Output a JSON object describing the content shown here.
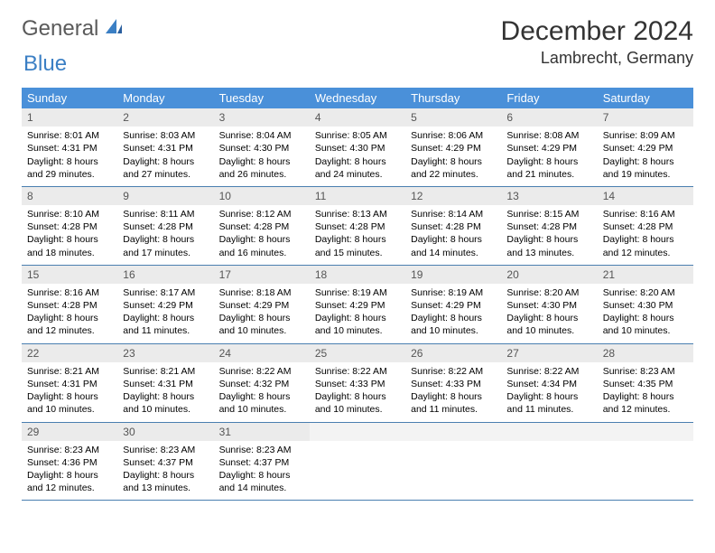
{
  "logo": {
    "part1": "General",
    "part2": "Blue"
  },
  "title": "December 2024",
  "location": "Lambrecht, Germany",
  "colors": {
    "header_bg": "#4a90d9",
    "header_text": "#ffffff",
    "daynum_bg": "#ebebeb",
    "row_border": "#4a7fb0",
    "logo_gray": "#5a5a5a",
    "logo_blue": "#3b7fc4"
  },
  "weekdays": [
    "Sunday",
    "Monday",
    "Tuesday",
    "Wednesday",
    "Thursday",
    "Friday",
    "Saturday"
  ],
  "weeks": [
    [
      {
        "n": "1",
        "sr": "8:01 AM",
        "ss": "4:31 PM",
        "dl": "8 hours and 29 minutes."
      },
      {
        "n": "2",
        "sr": "8:03 AM",
        "ss": "4:31 PM",
        "dl": "8 hours and 27 minutes."
      },
      {
        "n": "3",
        "sr": "8:04 AM",
        "ss": "4:30 PM",
        "dl": "8 hours and 26 minutes."
      },
      {
        "n": "4",
        "sr": "8:05 AM",
        "ss": "4:30 PM",
        "dl": "8 hours and 24 minutes."
      },
      {
        "n": "5",
        "sr": "8:06 AM",
        "ss": "4:29 PM",
        "dl": "8 hours and 22 minutes."
      },
      {
        "n": "6",
        "sr": "8:08 AM",
        "ss": "4:29 PM",
        "dl": "8 hours and 21 minutes."
      },
      {
        "n": "7",
        "sr": "8:09 AM",
        "ss": "4:29 PM",
        "dl": "8 hours and 19 minutes."
      }
    ],
    [
      {
        "n": "8",
        "sr": "8:10 AM",
        "ss": "4:28 PM",
        "dl": "8 hours and 18 minutes."
      },
      {
        "n": "9",
        "sr": "8:11 AM",
        "ss": "4:28 PM",
        "dl": "8 hours and 17 minutes."
      },
      {
        "n": "10",
        "sr": "8:12 AM",
        "ss": "4:28 PM",
        "dl": "8 hours and 16 minutes."
      },
      {
        "n": "11",
        "sr": "8:13 AM",
        "ss": "4:28 PM",
        "dl": "8 hours and 15 minutes."
      },
      {
        "n": "12",
        "sr": "8:14 AM",
        "ss": "4:28 PM",
        "dl": "8 hours and 14 minutes."
      },
      {
        "n": "13",
        "sr": "8:15 AM",
        "ss": "4:28 PM",
        "dl": "8 hours and 13 minutes."
      },
      {
        "n": "14",
        "sr": "8:16 AM",
        "ss": "4:28 PM",
        "dl": "8 hours and 12 minutes."
      }
    ],
    [
      {
        "n": "15",
        "sr": "8:16 AM",
        "ss": "4:28 PM",
        "dl": "8 hours and 12 minutes."
      },
      {
        "n": "16",
        "sr": "8:17 AM",
        "ss": "4:29 PM",
        "dl": "8 hours and 11 minutes."
      },
      {
        "n": "17",
        "sr": "8:18 AM",
        "ss": "4:29 PM",
        "dl": "8 hours and 10 minutes."
      },
      {
        "n": "18",
        "sr": "8:19 AM",
        "ss": "4:29 PM",
        "dl": "8 hours and 10 minutes."
      },
      {
        "n": "19",
        "sr": "8:19 AM",
        "ss": "4:29 PM",
        "dl": "8 hours and 10 minutes."
      },
      {
        "n": "20",
        "sr": "8:20 AM",
        "ss": "4:30 PM",
        "dl": "8 hours and 10 minutes."
      },
      {
        "n": "21",
        "sr": "8:20 AM",
        "ss": "4:30 PM",
        "dl": "8 hours and 10 minutes."
      }
    ],
    [
      {
        "n": "22",
        "sr": "8:21 AM",
        "ss": "4:31 PM",
        "dl": "8 hours and 10 minutes."
      },
      {
        "n": "23",
        "sr": "8:21 AM",
        "ss": "4:31 PM",
        "dl": "8 hours and 10 minutes."
      },
      {
        "n": "24",
        "sr": "8:22 AM",
        "ss": "4:32 PM",
        "dl": "8 hours and 10 minutes."
      },
      {
        "n": "25",
        "sr": "8:22 AM",
        "ss": "4:33 PM",
        "dl": "8 hours and 10 minutes."
      },
      {
        "n": "26",
        "sr": "8:22 AM",
        "ss": "4:33 PM",
        "dl": "8 hours and 11 minutes."
      },
      {
        "n": "27",
        "sr": "8:22 AM",
        "ss": "4:34 PM",
        "dl": "8 hours and 11 minutes."
      },
      {
        "n": "28",
        "sr": "8:23 AM",
        "ss": "4:35 PM",
        "dl": "8 hours and 12 minutes."
      }
    ],
    [
      {
        "n": "29",
        "sr": "8:23 AM",
        "ss": "4:36 PM",
        "dl": "8 hours and 12 minutes."
      },
      {
        "n": "30",
        "sr": "8:23 AM",
        "ss": "4:37 PM",
        "dl": "8 hours and 13 minutes."
      },
      {
        "n": "31",
        "sr": "8:23 AM",
        "ss": "4:37 PM",
        "dl": "8 hours and 14 minutes."
      },
      null,
      null,
      null,
      null
    ]
  ],
  "labels": {
    "sunrise": "Sunrise: ",
    "sunset": "Sunset: ",
    "daylight": "Daylight: "
  }
}
